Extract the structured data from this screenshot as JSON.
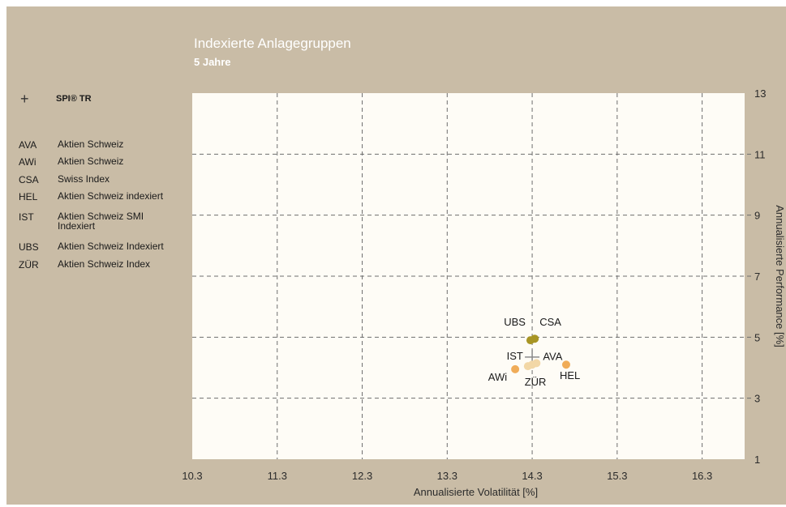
{
  "header": {
    "title": "Indexierte Anlagegruppen",
    "subtitle": "5 Jahre"
  },
  "legend": {
    "benchmark": {
      "icon": "plus-icon",
      "label": "SPI® TR"
    },
    "items": [
      {
        "code": "AVA",
        "name": "Aktien Schweiz"
      },
      {
        "code": "AWi",
        "name": "Aktien Schweiz"
      },
      {
        "code": "CSA",
        "name": "Swiss Index"
      },
      {
        "code": "HEL",
        "name": "Aktien Schweiz indexiert"
      },
      {
        "code": "IST",
        "name": "Aktien Schweiz SMI Indexiert"
      },
      {
        "code": "UBS",
        "name": "Aktien Schweiz Indexiert"
      },
      {
        "code": "ZÜR",
        "name": "Aktien Schweiz Index"
      }
    ]
  },
  "colors": {
    "frame": "#c9bca6",
    "plot_bg": "#fefcf6",
    "grid": "#6e6e6e",
    "dot_light": "#f2d7a6",
    "dot_orange": "#f0ac58",
    "dot_olive": "#a89524",
    "benchmark": "#8a8a8a"
  },
  "chart_data": {
    "type": "scatter",
    "title": "Indexierte Anlagegruppen",
    "subtitle": "5 Jahre",
    "xlabel": "Annualisierte Volatilität [%]",
    "ylabel": "Annualisierte Performance [%]",
    "xlim": [
      10.3,
      16.8
    ],
    "ylim": [
      1,
      13
    ],
    "x_ticks": [
      "10.3",
      "11.3",
      "12.3",
      "13.3",
      "14.3",
      "15.3",
      "16.3"
    ],
    "y_ticks": [
      "1",
      "3",
      "5",
      "7",
      "9",
      "11",
      "13"
    ],
    "grid": true,
    "points": [
      {
        "label": "AVA",
        "x": 14.35,
        "y": 4.15,
        "color": "#f2d7a6"
      },
      {
        "label": "AWi",
        "x": 14.1,
        "y": 3.95,
        "color": "#f0ac58"
      },
      {
        "label": "CSA",
        "x": 14.33,
        "y": 4.95,
        "color": "#a89524"
      },
      {
        "label": "HEL",
        "x": 14.7,
        "y": 4.1,
        "color": "#f0ac58"
      },
      {
        "label": "IST",
        "x": 14.25,
        "y": 4.05,
        "color": "#f2d7a6"
      },
      {
        "label": "UBS",
        "x": 14.28,
        "y": 4.9,
        "color": "#a89524"
      },
      {
        "label": "ZÜR",
        "x": 14.3,
        "y": 4.1,
        "color": "#f2d7a6"
      }
    ],
    "benchmark": {
      "label": "SPI® TR",
      "x": 14.3,
      "y": 4.35
    }
  }
}
